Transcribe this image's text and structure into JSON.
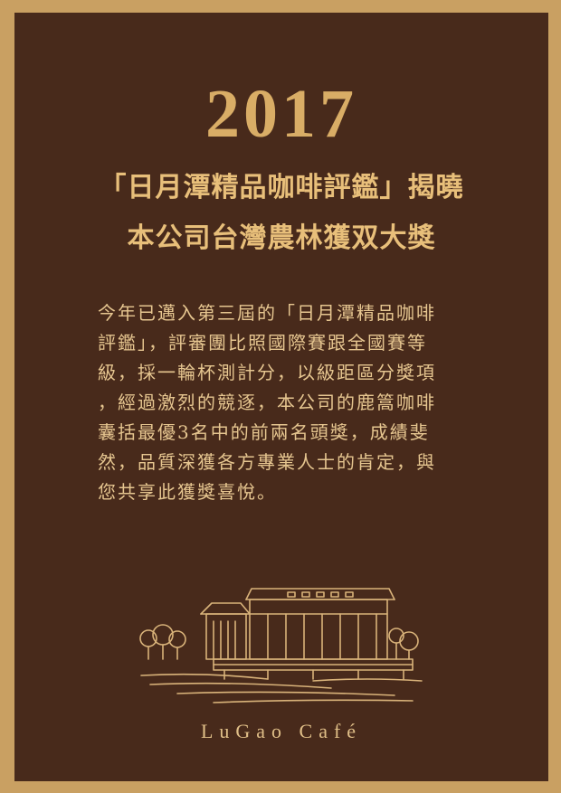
{
  "poster": {
    "year": "2017",
    "headline_line1": "「日月潭精品咖啡評鑑」揭曉",
    "headline_line2": "本公司台灣農林獲双大獎",
    "body_lines": [
      "今年已邁入第三屆的「日月潭精品咖啡",
      "評鑑」，評審團比照國際賽跟全國賽等",
      "級，採一輪杯測計分，以級距區分獎項",
      "，經過激烈的競逐，本公司的鹿篙咖啡",
      "囊括最優3名中的前兩名頭獎，成績斐",
      "然，品質深獲各方專業人士的肯定，與",
      "您共享此獲獎喜悅。"
    ],
    "brand": "LuGao Café"
  },
  "colors": {
    "frame": "#c9a062",
    "panel": "#482a1b",
    "gold_text": "#e8bf7a"
  },
  "icons": {
    "illustration": "cafe-building-illustration"
  }
}
